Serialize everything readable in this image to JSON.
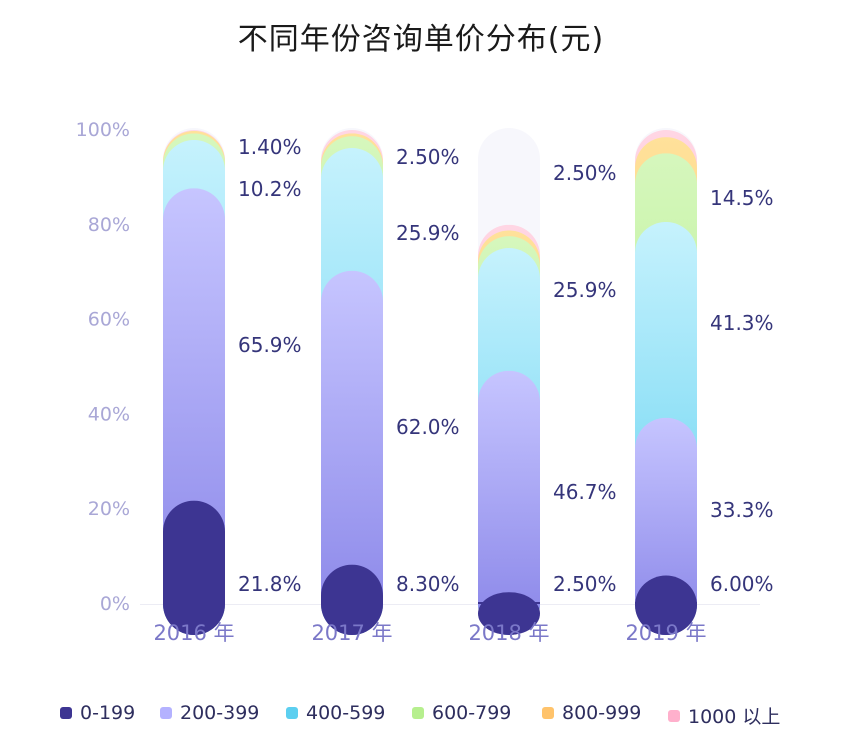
{
  "chart_data": {
    "type": "bar",
    "stacked": true,
    "normalized": true,
    "title": "不同年份咨询单价分布(元)",
    "categories": [
      "2016 年",
      "2017 年",
      "2018 年",
      "2019 年"
    ],
    "ylim": [
      0,
      100
    ],
    "y_ticks": [
      "0%",
      "20%",
      "40%",
      "60%",
      "80%",
      "100%"
    ],
    "legend_position": "bottom",
    "series": [
      {
        "name": "0-199",
        "color": "#3d3592",
        "values": [
          21.8,
          8.3,
          2.5,
          6.0
        ],
        "labels": [
          "21.8%",
          "8.30%",
          "2.50%",
          "6.00%"
        ]
      },
      {
        "name": "200-399",
        "color": "#b4b2ff",
        "values": [
          65.9,
          62.0,
          46.7,
          33.3
        ],
        "labels": [
          "65.9%",
          "62.0%",
          "46.7%",
          "33.3%"
        ]
      },
      {
        "name": "400-599",
        "color": "#5ccff0",
        "values": [
          10.2,
          25.9,
          25.9,
          41.3
        ],
        "labels": [
          "10.2%",
          "25.9%",
          "25.9%",
          "41.3%"
        ]
      },
      {
        "name": "600-799",
        "color": "#b6ef8e",
        "values": [
          1.4,
          2.5,
          2.5,
          14.5
        ],
        "labels": [
          "1.40%",
          "2.50%",
          "2.50%",
          "14.5%"
        ]
      },
      {
        "name": "800-999",
        "color": "#ffc36b",
        "values": [
          0.5,
          0.6,
          1.2,
          3.4
        ],
        "labels": [
          "",
          "",
          "",
          ""
        ]
      },
      {
        "name": "1000 以上",
        "color": "#ffb0cc",
        "values": [
          0.4,
          0.7,
          1.2,
          1.5
        ],
        "labels": [
          "",
          "",
          "",
          ""
        ]
      }
    ],
    "grid": false
  }
}
